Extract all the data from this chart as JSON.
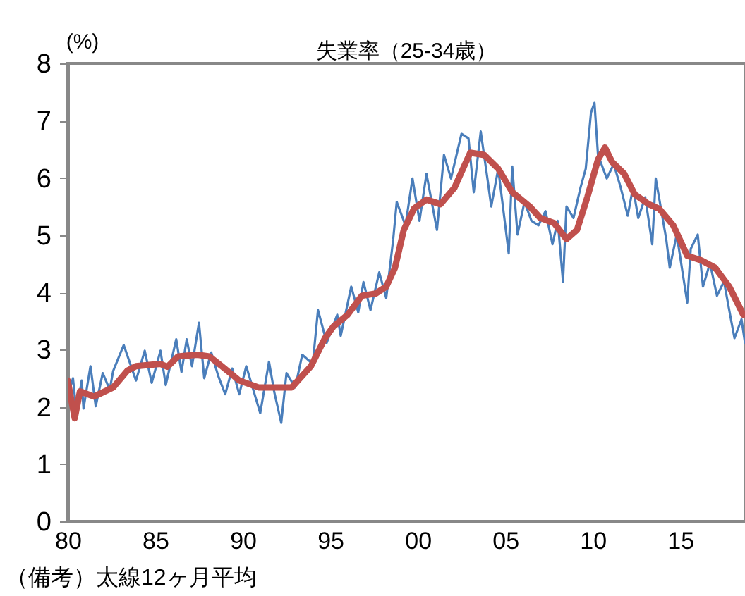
{
  "chart_data": {
    "type": "line",
    "title": "失業率（25-34歳）",
    "ylabel": "(%)",
    "annotations": [
      "（備考）太線12ヶ月平均"
    ],
    "xlim": [
      1980,
      2018.7
    ],
    "xticks": [
      {
        "value": 1980,
        "label": "80"
      },
      {
        "value": 1985,
        "label": "85"
      },
      {
        "value": 1990,
        "label": "90"
      },
      {
        "value": 1995,
        "label": "95"
      },
      {
        "value": 2000,
        "label": "00"
      },
      {
        "value": 2005,
        "label": "05"
      },
      {
        "value": 2010,
        "label": "10"
      },
      {
        "value": 2015,
        "label": "15"
      }
    ],
    "ylim": [
      0,
      8
    ],
    "yticks": [
      0,
      1,
      2,
      3,
      4,
      5,
      6,
      7,
      8
    ],
    "grid": false,
    "line_style": "solid",
    "marker": "none",
    "series": [
      {
        "color": "#4a7ebb",
        "x": [
          1980.0,
          1980.3,
          1980.5,
          1980.8,
          1980.9,
          1981.3,
          1981.6,
          1982.0,
          1982.4,
          1982.6,
          1983.2,
          1983.9,
          1984.4,
          1984.8,
          1985.3,
          1985.6,
          1986.2,
          1986.5,
          1986.8,
          1987.1,
          1987.5,
          1987.8,
          1988.2,
          1988.6,
          1989.0,
          1989.4,
          1989.8,
          1990.2,
          1990.6,
          1991.0,
          1991.5,
          1991.8,
          1992.2,
          1992.5,
          1993.0,
          1993.4,
          1994.0,
          1994.3,
          1994.8,
          1995.4,
          1995.6,
          1996.2,
          1996.6,
          1996.9,
          1997.3,
          1997.8,
          1998.2,
          1998.6,
          1998.8,
          1999.3,
          1999.7,
          2000.1,
          2000.5,
          2001.1,
          2001.5,
          2001.9,
          2002.5,
          2002.9,
          2003.2,
          2003.6,
          2004.0,
          2004.2,
          2004.6,
          2005.2,
          2005.4,
          2005.7,
          2006.1,
          2006.5,
          2006.9,
          2007.3,
          2007.7,
          2008.0,
          2008.3,
          2008.5,
          2008.9,
          2009.3,
          2009.6,
          2009.9,
          2010.1,
          2010.3,
          2010.8,
          2011.2,
          2011.6,
          2012.0,
          2012.3,
          2012.6,
          2013.0,
          2013.4,
          2013.6,
          2014.2,
          2014.4,
          2014.8,
          2015.4,
          2015.6,
          2016.0,
          2016.3,
          2016.7,
          2017.1,
          2017.5,
          2017.8,
          2018.1,
          2018.5,
          2018.7
        ],
        "values": [
          2.2,
          2.5,
          1.9,
          2.46,
          1.97,
          2.71,
          2.01,
          2.59,
          2.3,
          2.63,
          3.08,
          2.46,
          2.98,
          2.42,
          2.98,
          2.38,
          3.18,
          2.61,
          3.18,
          2.71,
          3.47,
          2.5,
          2.95,
          2.54,
          2.22,
          2.67,
          2.22,
          2.71,
          2.3,
          1.89,
          2.79,
          2.26,
          1.72,
          2.59,
          2.34,
          2.91,
          2.75,
          3.69,
          3.12,
          3.61,
          3.24,
          4.1,
          3.65,
          4.18,
          3.69,
          4.35,
          3.9,
          4.93,
          5.58,
          5.17,
          5.99,
          5.25,
          6.07,
          5.09,
          6.4,
          5.99,
          6.77,
          6.69,
          5.75,
          6.81,
          5.95,
          5.5,
          6.16,
          4.68,
          6.2,
          5.01,
          5.58,
          5.25,
          5.17,
          5.42,
          4.84,
          5.25,
          4.19,
          5.5,
          5.3,
          5.83,
          6.16,
          7.14,
          7.31,
          6.4,
          5.99,
          6.24,
          5.83,
          5.34,
          5.83,
          5.3,
          5.66,
          4.84,
          5.99,
          4.93,
          4.43,
          5.01,
          3.82,
          4.76,
          5.01,
          4.1,
          4.51,
          3.94,
          4.19,
          3.69,
          3.2,
          3.53,
          3.12
        ]
      },
      {
        "color": "#c0504d",
        "x": [
          1980.0,
          1980.4,
          1980.7,
          1981.5,
          1982.6,
          1983.4,
          1983.9,
          1985.3,
          1985.7,
          1986.3,
          1987.4,
          1988.1,
          1988.8,
          1989.8,
          1990.9,
          1992.3,
          1992.8,
          1993.9,
          1994.7,
          1995.2,
          1996.0,
          1996.8,
          1997.6,
          1998.2,
          1998.7,
          1999.2,
          1999.8,
          2000.5,
          2001.3,
          2002.1,
          2003.0,
          2003.8,
          2004.6,
          2005.4,
          2006.4,
          2007.0,
          2007.8,
          2008.5,
          2009.1,
          2009.7,
          2010.3,
          2010.7,
          2011.1,
          2011.8,
          2012.4,
          2013.2,
          2013.8,
          2014.6,
          2015.4,
          2016.2,
          2017.0,
          2017.8,
          2018.6
        ],
        "values": [
          2.46,
          1.8,
          2.27,
          2.18,
          2.34,
          2.63,
          2.71,
          2.75,
          2.7,
          2.88,
          2.91,
          2.88,
          2.71,
          2.46,
          2.34,
          2.34,
          2.34,
          2.71,
          3.2,
          3.41,
          3.61,
          3.94,
          3.98,
          4.1,
          4.43,
          5.09,
          5.47,
          5.62,
          5.54,
          5.83,
          6.44,
          6.4,
          6.16,
          5.75,
          5.5,
          5.3,
          5.21,
          4.93,
          5.09,
          5.67,
          6.32,
          6.53,
          6.28,
          6.07,
          5.71,
          5.54,
          5.46,
          5.17,
          4.64,
          4.56,
          4.43,
          4.1,
          3.61
        ]
      }
    ]
  }
}
